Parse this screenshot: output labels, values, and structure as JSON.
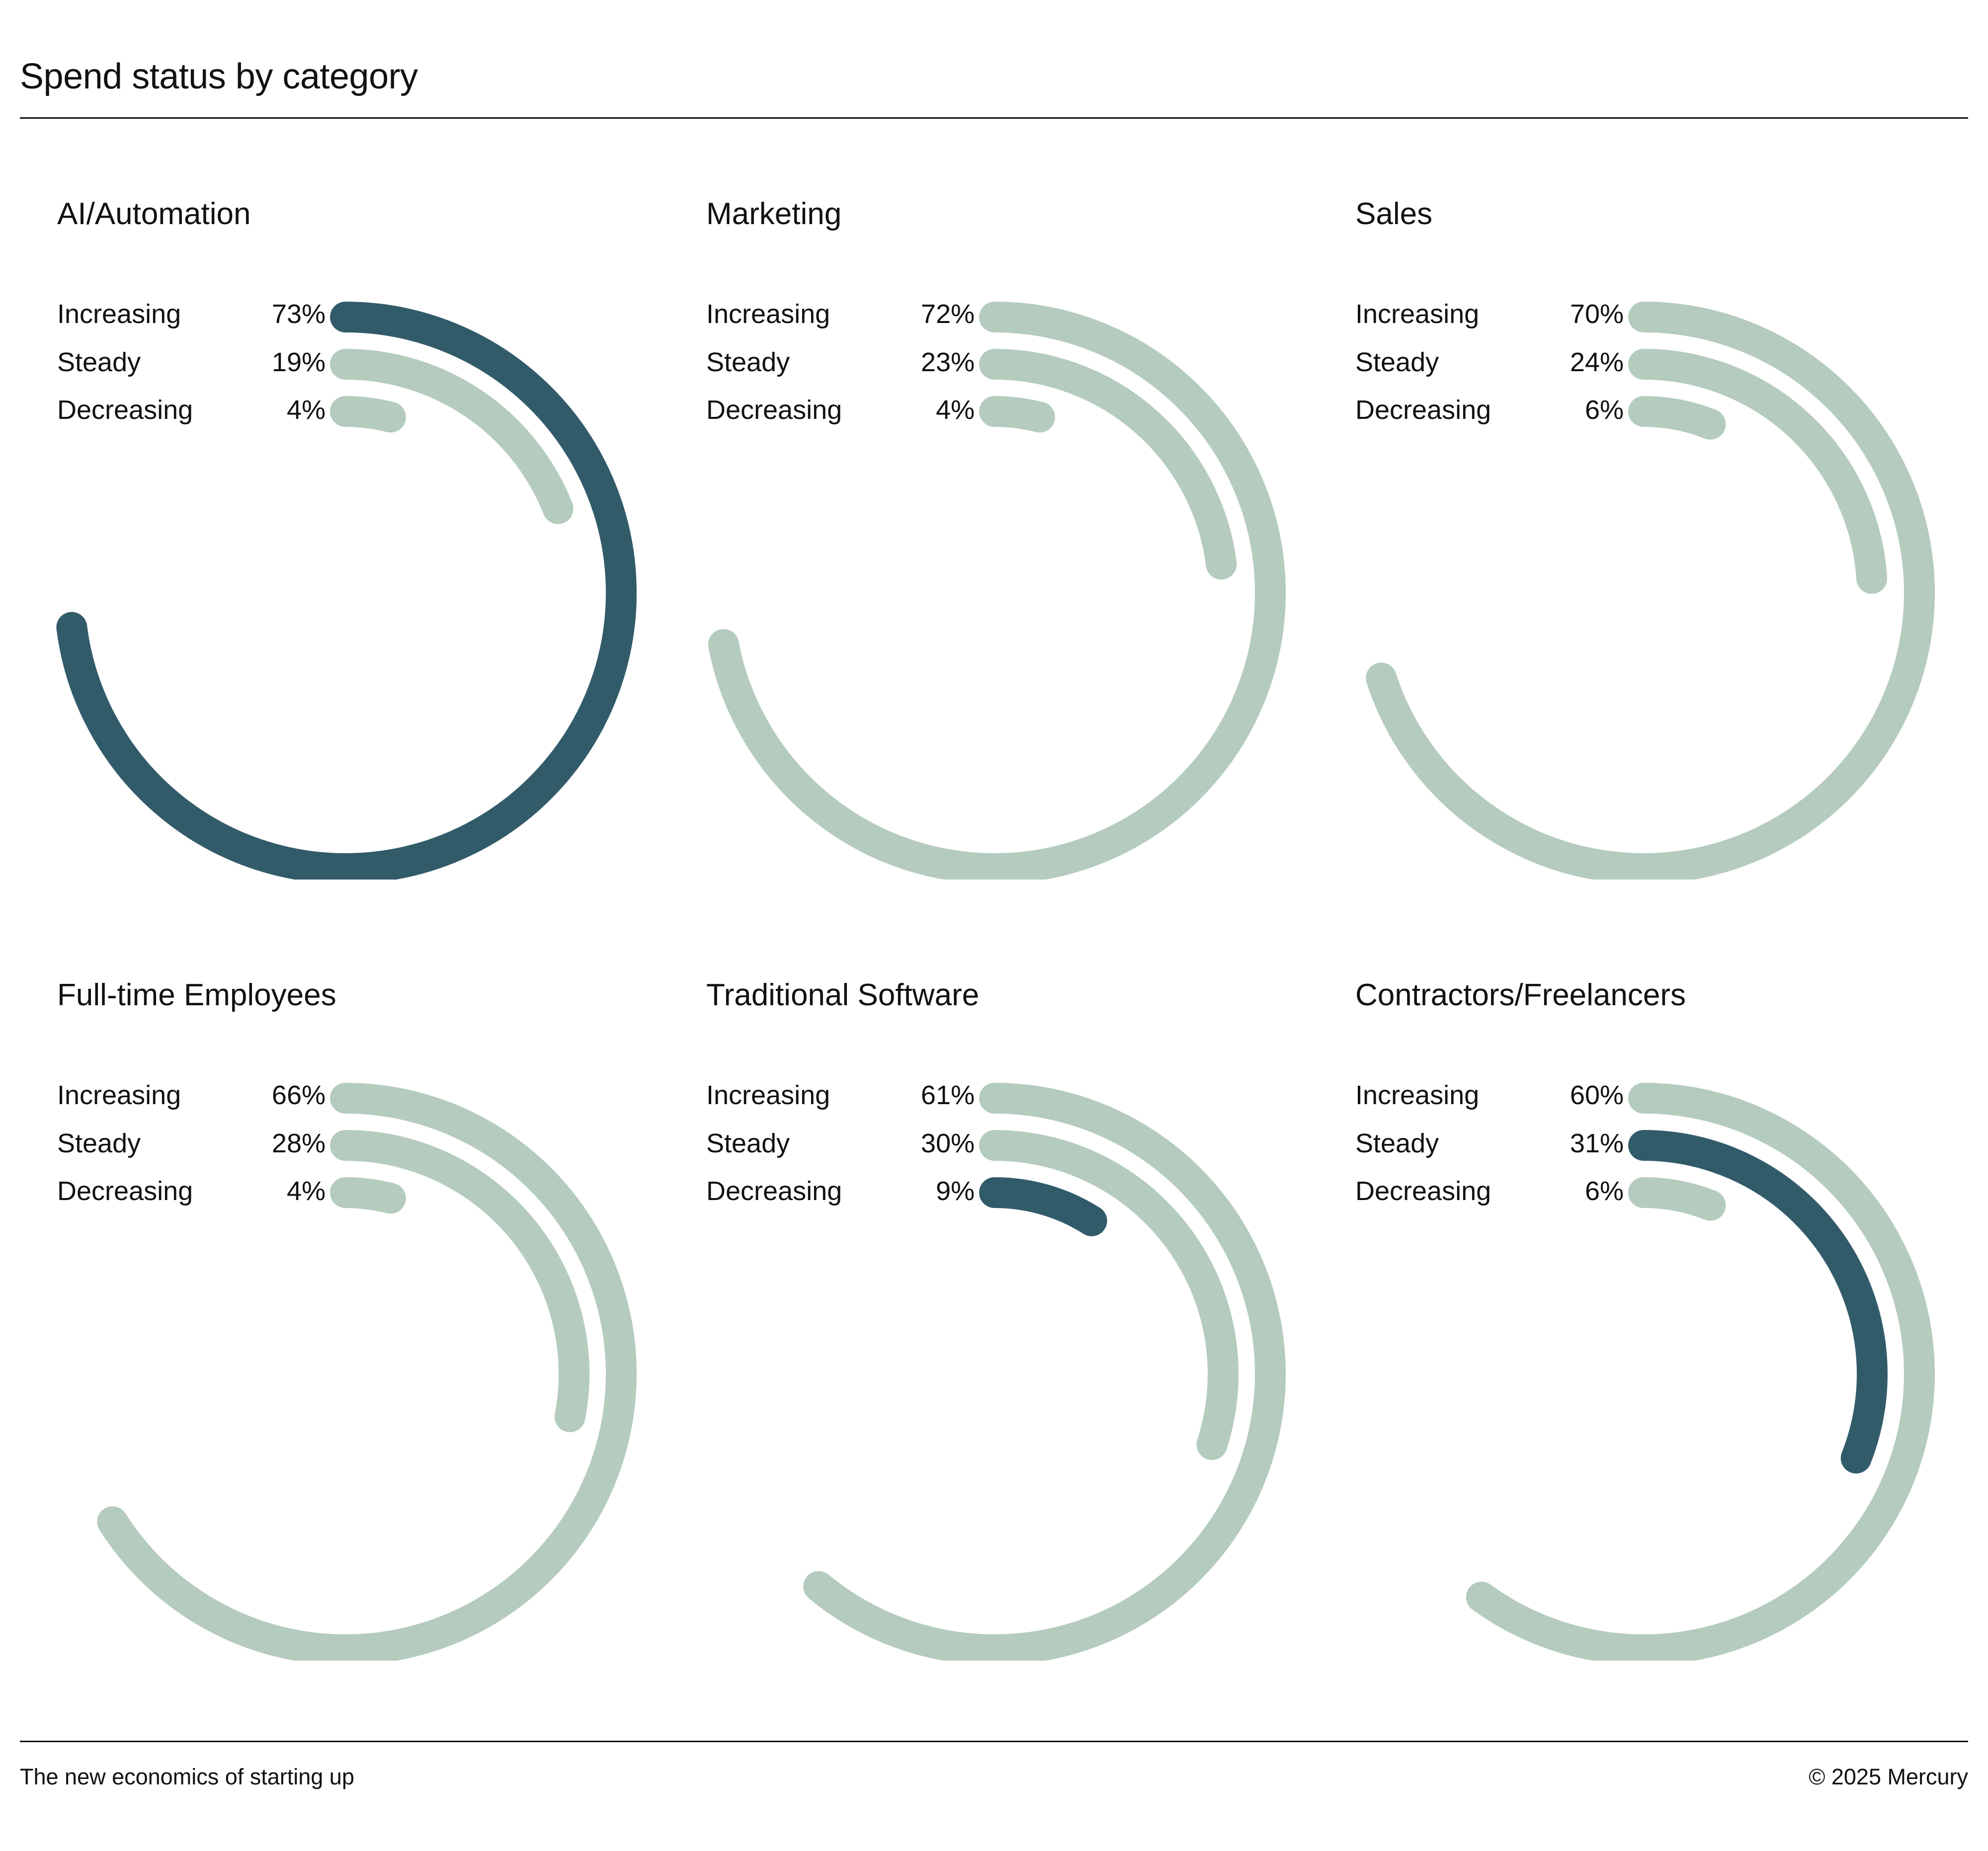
{
  "title": "Spend status by category",
  "footer": {
    "left": "The new economics of starting up",
    "right": "© 2025 Mercury"
  },
  "colors": {
    "highlight": "#325b6a",
    "muted": "#b4cbbd",
    "text": "#111111",
    "rule": "#111111"
  },
  "chart_data": {
    "type": "radial-bar",
    "title": "Spend status by category",
    "series_names": [
      "Increasing",
      "Steady",
      "Decreasing"
    ],
    "value_max": 100,
    "charts": [
      {
        "category": "AI/Automation",
        "rows": [
          {
            "label": "Increasing",
            "value": 73,
            "display": "73%",
            "highlight": true
          },
          {
            "label": "Steady",
            "value": 19,
            "display": "19%",
            "highlight": false
          },
          {
            "label": "Decreasing",
            "value": 4,
            "display": "4%",
            "highlight": false
          }
        ]
      },
      {
        "category": "Marketing",
        "rows": [
          {
            "label": "Increasing",
            "value": 72,
            "display": "72%",
            "highlight": false
          },
          {
            "label": "Steady",
            "value": 23,
            "display": "23%",
            "highlight": false
          },
          {
            "label": "Decreasing",
            "value": 4,
            "display": "4%",
            "highlight": false
          }
        ]
      },
      {
        "category": "Sales",
        "rows": [
          {
            "label": "Increasing",
            "value": 70,
            "display": "70%",
            "highlight": false
          },
          {
            "label": "Steady",
            "value": 24,
            "display": "24%",
            "highlight": false
          },
          {
            "label": "Decreasing",
            "value": 6,
            "display": "6%",
            "highlight": false
          }
        ]
      },
      {
        "category": "Full-time Employees",
        "rows": [
          {
            "label": "Increasing",
            "value": 66,
            "display": "66%",
            "highlight": false
          },
          {
            "label": "Steady",
            "value": 28,
            "display": "28%",
            "highlight": false
          },
          {
            "label": "Decreasing",
            "value": 4,
            "display": "4%",
            "highlight": false
          }
        ]
      },
      {
        "category": "Traditional Software",
        "rows": [
          {
            "label": "Increasing",
            "value": 61,
            "display": "61%",
            "highlight": false
          },
          {
            "label": "Steady",
            "value": 30,
            "display": "30%",
            "highlight": false
          },
          {
            "label": "Decreasing",
            "value": 9,
            "display": "9%",
            "highlight": true
          }
        ]
      },
      {
        "category": "Contractors/Freelancers",
        "rows": [
          {
            "label": "Increasing",
            "value": 60,
            "display": "60%",
            "highlight": false
          },
          {
            "label": "Steady",
            "value": 31,
            "display": "31%",
            "highlight": true
          },
          {
            "label": "Decreasing",
            "value": 6,
            "display": "6%",
            "highlight": false
          }
        ]
      }
    ]
  }
}
